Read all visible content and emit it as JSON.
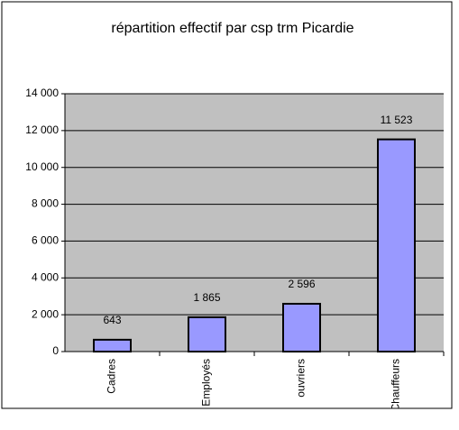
{
  "chart_data": {
    "type": "bar",
    "title": "répartition effectif par csp trm Picardie",
    "categories": [
      "Cadres",
      "Employés",
      "ouvriers",
      "Chauffeurs"
    ],
    "values": [
      643,
      1865,
      2596,
      11523
    ],
    "value_labels": [
      "643",
      "1 865",
      "2 596",
      "11 523"
    ],
    "color": "#9999ff",
    "ylim": [
      0,
      14000
    ],
    "yticks": [
      {
        "value": 0,
        "label": "0"
      },
      {
        "value": 2000,
        "label": "2 000"
      },
      {
        "value": 4000,
        "label": "4 000"
      },
      {
        "value": 6000,
        "label": "6 000"
      },
      {
        "value": 8000,
        "label": "8 000"
      },
      {
        "value": 10000,
        "label": "10 000"
      },
      {
        "value": 12000,
        "label": "12 000"
      },
      {
        "value": 14000,
        "label": "14 000"
      }
    ],
    "grid": true
  }
}
